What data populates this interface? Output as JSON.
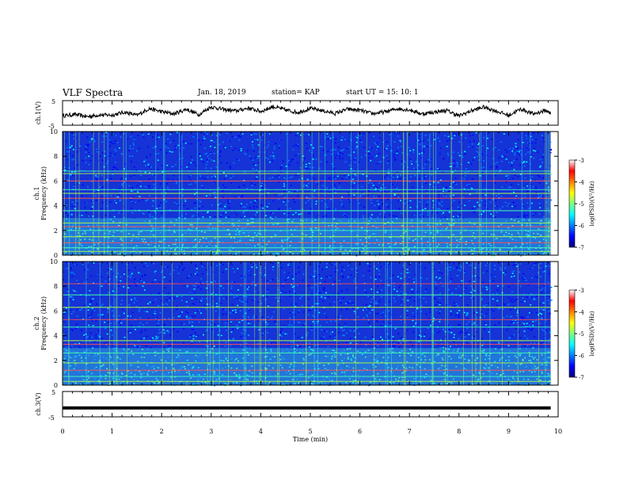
{
  "header": {
    "title": "VLF Spectra",
    "date": "Jan. 18, 2019",
    "station": "station= KAP",
    "start": "start  UT =   15: 10: 1"
  },
  "colors": {
    "spectrogram_bg": "#1533d6",
    "trace": "#000000",
    "colormap": [
      "#00007f",
      "#0000ff",
      "#0080ff",
      "#00ffff",
      "#80ff80",
      "#ffff00",
      "#ff8000",
      "#ff0000",
      "#ffffff"
    ]
  },
  "chart_data": [
    {
      "type": "line",
      "name": "ch1-waveform",
      "ylabel": "ch.1(V)",
      "ylim": [
        -5,
        5
      ],
      "y_ticks": [
        "5",
        "-5"
      ],
      "xlim": [
        0,
        10
      ],
      "x": [
        0,
        0.25,
        0.5,
        0.75,
        1.0,
        1.25,
        1.5,
        1.75,
        2.0,
        2.25,
        2.5,
        2.75,
        3.0,
        3.25,
        3.5,
        3.75,
        4.0,
        4.25,
        4.5,
        4.75,
        5.0,
        5.25,
        5.5,
        5.75,
        6.0,
        6.25,
        6.5,
        6.75,
        7.0,
        7.25,
        7.5,
        7.75,
        8.0,
        8.25,
        8.5,
        8.75,
        9.0,
        9.25,
        9.5,
        9.75,
        9.85
      ],
      "y": [
        -1.2,
        -0.6,
        -1.5,
        -0.8,
        -0.9,
        0.3,
        -1.0,
        1.8,
        0.5,
        -0.4,
        1.5,
        -0.7,
        2.5,
        1.4,
        0.8,
        2.0,
        0.6,
        2.6,
        1.2,
        0.2,
        1.8,
        0.9,
        -0.2,
        1.5,
        1.1,
        -0.3,
        0.4,
        1.7,
        1.3,
        -0.4,
        0.3,
        1.0,
        -1.2,
        0.9,
        2.4,
        0.8,
        -1.0,
        1.6,
        -0.4,
        1.0,
        -0.2
      ]
    },
    {
      "type": "heatmap",
      "name": "ch1-spectrogram",
      "title": "ch.1",
      "ylabel": "Frequency  (kHz)",
      "ylim": [
        0,
        10
      ],
      "y_ticks": [
        "0",
        "2",
        "4",
        "6",
        "8",
        "10"
      ],
      "xlim": [
        0,
        10
      ],
      "colorbar": {
        "label": "log(PSD)(V²/Hz)",
        "range": [
          -7,
          -3
        ],
        "ticks": [
          "-3",
          "-4",
          "-5",
          "-6",
          "-7"
        ]
      },
      "bands_khz": [
        0.3,
        0.6,
        1.0,
        1.5,
        2.0,
        2.3,
        2.6,
        3.6,
        4.6,
        5.0,
        5.3,
        6.0,
        6.6,
        6.8
      ]
    },
    {
      "type": "heatmap",
      "name": "ch2-spectrogram",
      "title": "ch.2",
      "ylabel": "Frequency  (kHz)",
      "ylim": [
        0,
        10
      ],
      "y_ticks": [
        "0",
        "2",
        "4",
        "6",
        "8",
        "10"
      ],
      "xlim": [
        0,
        10
      ],
      "colorbar": {
        "label": "log(PSD)(V²/Hz)",
        "range": [
          -7,
          -3
        ],
        "ticks": [
          "-3",
          "-4",
          "-5",
          "-6",
          "-7"
        ]
      },
      "bands_khz": [
        0.3,
        0.7,
        1.2,
        1.8,
        2.6,
        3.3,
        3.6,
        4.7,
        5.3,
        6.3,
        7.3,
        8.2
      ]
    },
    {
      "type": "line",
      "name": "ch3-waveform",
      "ylabel": "ch.3(V)",
      "ylim": [
        -5,
        5
      ],
      "y_ticks": [
        "5",
        "-5"
      ],
      "xlim": [
        0,
        10
      ],
      "xlabel": "Time  (min)",
      "x_ticks": [
        "0",
        "1",
        "2",
        "3",
        "4",
        "5",
        "6",
        "7",
        "8",
        "9",
        "10"
      ],
      "x": [
        0,
        9.85
      ],
      "y": [
        -1.5,
        -1.5
      ]
    }
  ]
}
